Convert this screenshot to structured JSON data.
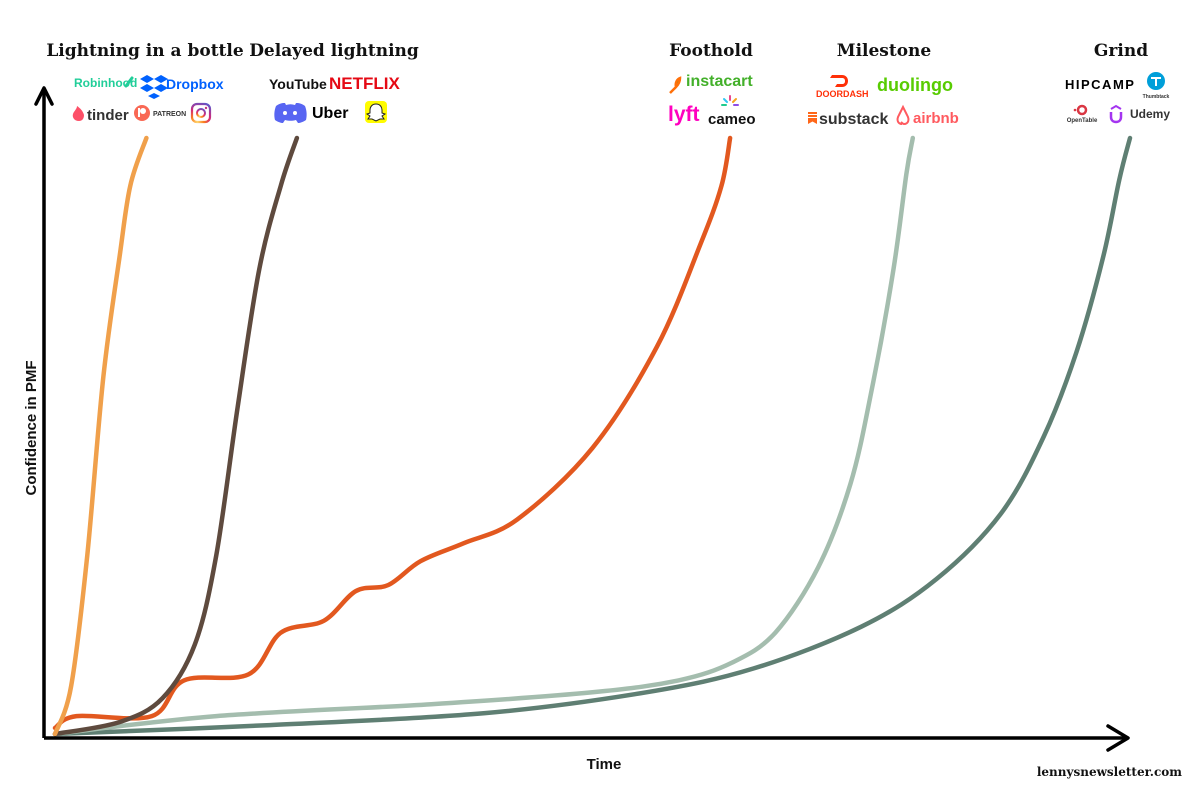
{
  "chart_data": {
    "type": "line",
    "title": "",
    "xlabel": "Time",
    "ylabel": "Confidence in PMF",
    "xlim": [
      0,
      100
    ],
    "ylim": [
      0,
      100
    ],
    "grid": false,
    "credit": "lennysnewsletter.com",
    "categories": [
      {
        "name": "Lightning in a bottle",
        "color": "#F0A04B",
        "logos": [
          {
            "name": "robinhood-logo",
            "text": "Robinhood",
            "color": "#21CE99"
          },
          {
            "name": "dropbox-logo",
            "text": "Dropbox",
            "color": "#0061FE"
          },
          {
            "name": "tinder-logo",
            "text": "tinder",
            "color": "#FD5068"
          },
          {
            "name": "patreon-logo",
            "text": "PATREON",
            "color": "#F96854"
          },
          {
            "name": "instagram-logo",
            "text": "",
            "color": "#C13584"
          }
        ],
        "points": [
          [
            0,
            0
          ],
          [
            1.5,
            8
          ],
          [
            3,
            30
          ],
          [
            4.5,
            60
          ],
          [
            6,
            80
          ],
          [
            7,
            92
          ],
          [
            8.5,
            100
          ]
        ]
      },
      {
        "name": "Delayed lightning",
        "color": "#5E4A3E",
        "logos": [
          {
            "name": "youtube-logo",
            "text": "YouTube",
            "color": "#FF0000"
          },
          {
            "name": "netflix-logo",
            "text": "NETFLIX",
            "color": "#E50914"
          },
          {
            "name": "discord-logo",
            "text": "",
            "color": "#5865F2"
          },
          {
            "name": "uber-logo",
            "text": "Uber",
            "color": "#000000"
          },
          {
            "name": "snapchat-logo",
            "text": "",
            "color": "#FFFC00"
          }
        ],
        "points": [
          [
            0,
            0
          ],
          [
            6,
            2
          ],
          [
            10,
            6
          ],
          [
            13,
            15
          ],
          [
            15,
            30
          ],
          [
            17,
            55
          ],
          [
            19,
            78
          ],
          [
            21,
            92
          ],
          [
            22.5,
            100
          ]
        ]
      },
      {
        "name": "Foothold",
        "color": "#E2581F",
        "logos": [
          {
            "name": "instacart-logo",
            "text": "instacart",
            "color": "#43B02A"
          },
          {
            "name": "lyft-logo",
            "text": "lyft",
            "color": "#FF00BF"
          },
          {
            "name": "cameo-logo",
            "text": "cameo",
            "color": "#000000"
          }
        ],
        "points": [
          [
            0,
            1
          ],
          [
            2,
            3
          ],
          [
            9,
            3
          ],
          [
            12,
            9
          ],
          [
            18,
            10
          ],
          [
            21,
            17
          ],
          [
            25,
            19
          ],
          [
            28,
            24
          ],
          [
            31,
            25
          ],
          [
            34,
            29
          ],
          [
            38,
            32
          ],
          [
            43,
            36
          ],
          [
            50,
            48
          ],
          [
            56,
            65
          ],
          [
            60,
            82
          ],
          [
            62,
            92
          ],
          [
            62.8,
            100
          ]
        ]
      },
      {
        "name": "Milestone",
        "color": "#A4BDAE",
        "logos": [
          {
            "name": "doordash-logo",
            "text": "DOORDASH",
            "color": "#FF3008"
          },
          {
            "name": "duolingo-logo",
            "text": "duolingo",
            "color": "#58CC02"
          },
          {
            "name": "substack-logo",
            "text": "substack",
            "color": "#FF6719"
          },
          {
            "name": "airbnb-logo",
            "text": "airbnb",
            "color": "#FF5A5F"
          }
        ],
        "points": [
          [
            0,
            0
          ],
          [
            15,
            3
          ],
          [
            35,
            5
          ],
          [
            50,
            7
          ],
          [
            58,
            9
          ],
          [
            63,
            12
          ],
          [
            67,
            17
          ],
          [
            71,
            28
          ],
          [
            74,
            42
          ],
          [
            76,
            58
          ],
          [
            78,
            78
          ],
          [
            79.2,
            94
          ],
          [
            79.8,
            100
          ]
        ]
      },
      {
        "name": "Grind",
        "color": "#5F7F73",
        "logos": [
          {
            "name": "hipcamp-logo",
            "text": "HIPCAMP",
            "color": "#000000"
          },
          {
            "name": "thumbtack-logo",
            "text": "Thumbtack",
            "color": "#009FD9"
          },
          {
            "name": "opentable-logo",
            "text": "OpenTable",
            "color": "#DA3743"
          },
          {
            "name": "udemy-logo",
            "text": "Udemy",
            "color": "#A435F0"
          }
        ],
        "points": [
          [
            0,
            0
          ],
          [
            20,
            1.5
          ],
          [
            40,
            3.5
          ],
          [
            55,
            7
          ],
          [
            65,
            11
          ],
          [
            75,
            18
          ],
          [
            82,
            26
          ],
          [
            88,
            37
          ],
          [
            92,
            50
          ],
          [
            95,
            64
          ],
          [
            97.5,
            80
          ],
          [
            99,
            93
          ],
          [
            100,
            100
          ]
        ]
      }
    ]
  }
}
